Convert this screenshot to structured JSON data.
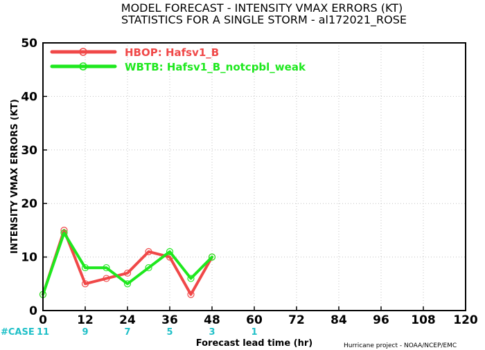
{
  "chart_data": {
    "type": "line",
    "title": "MODEL FORECAST - INTENSITY VMAX ERRORS (KT)",
    "subtitle": "STATISTICS FOR A SINGLE STORM - al172021_ROSE",
    "xlabel": "Forecast lead time (hr)",
    "ylabel": "INTENSITY VMAX ERRORS (KT)",
    "xlim": [
      0,
      120
    ],
    "ylim": [
      0,
      50
    ],
    "xticks": [
      0,
      12,
      24,
      36,
      48,
      60,
      72,
      84,
      96,
      108,
      120
    ],
    "yticks": [
      0,
      10,
      20,
      30,
      40,
      50
    ],
    "grid": true,
    "legend_position": "top-left",
    "case_label": "#CASE",
    "case_counts": [
      {
        "x": 0,
        "value": "11"
      },
      {
        "x": 12,
        "value": "9"
      },
      {
        "x": 24,
        "value": "7"
      },
      {
        "x": 36,
        "value": "5"
      },
      {
        "x": 48,
        "value": "3"
      },
      {
        "x": 60,
        "value": "1"
      }
    ],
    "series": [
      {
        "name": "HBOP: Hafsv1_B",
        "color": "#f04848",
        "x": [
          0,
          6,
          12,
          18,
          24,
          30,
          36,
          42,
          48
        ],
        "y": [
          3,
          15,
          5,
          6,
          7,
          11,
          10,
          3,
          10
        ]
      },
      {
        "name": "WBTB: Hafsv1_B_notcpbl_weak",
        "color": "#1ee81e",
        "x": [
          0,
          6,
          12,
          18,
          24,
          30,
          36,
          42,
          48
        ],
        "y": [
          3,
          14.5,
          8,
          8,
          5,
          8,
          11,
          6,
          10
        ]
      }
    ],
    "footer": "Hurricane project - NOAA/NCEP/EMC"
  }
}
